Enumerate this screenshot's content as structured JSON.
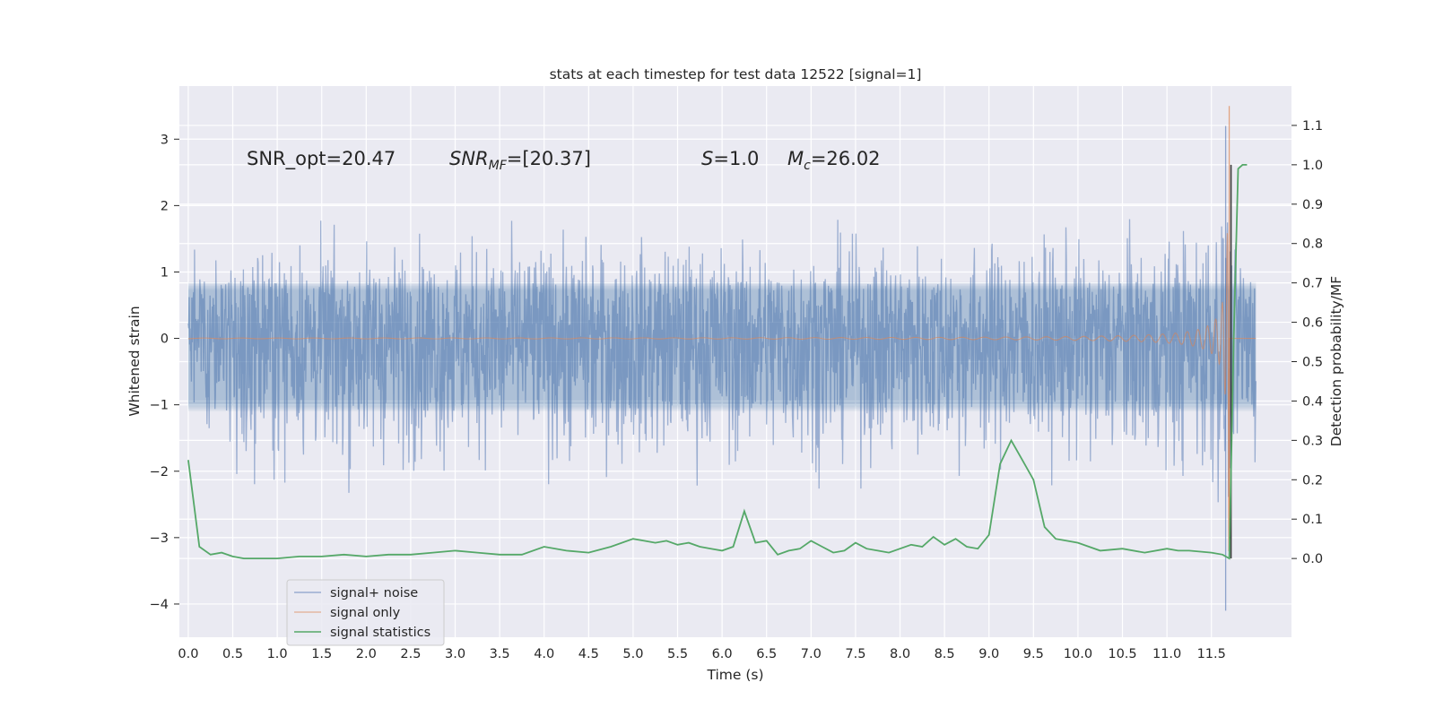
{
  "chart_data": {
    "type": "line",
    "title": "stats at each timestep for test data 12522 [signal=1]",
    "xlabel": "Time (s)",
    "ylabel": "Whitened strain",
    "ylabel_right": "Detection probability/MF",
    "xlim": [
      -0.1,
      12.4
    ],
    "ylim": [
      -4.5,
      3.8
    ],
    "ylim_right": [
      -0.2,
      1.2
    ],
    "x_ticks": [
      0.0,
      0.5,
      1.0,
      1.5,
      2.0,
      2.5,
      3.0,
      3.5,
      4.0,
      4.5,
      5.0,
      5.5,
      6.0,
      6.5,
      7.0,
      7.5,
      8.0,
      8.5,
      9.0,
      9.5,
      10.0,
      10.5,
      11.0,
      11.5
    ],
    "x_tick_labels": [
      "0.0",
      "0.5",
      "1.0",
      "1.5",
      "2.0",
      "2.5",
      "3.0",
      "3.5",
      "4.0",
      "4.5",
      "5.0",
      "5.5",
      "6.0",
      "6.5",
      "7.0",
      "7.5",
      "8.0",
      "8.5",
      "9.0",
      "9.5",
      "10.0",
      "10.5",
      "11.0",
      "11.5"
    ],
    "y_ticks": [
      3,
      2,
      1,
      0,
      -1,
      -2,
      -3,
      -4
    ],
    "y_tick_labels": [
      "3",
      "2",
      "1",
      "0",
      "−1",
      "−2",
      "−3",
      "−4"
    ],
    "y_ticks_right": [
      1.1,
      1.0,
      0.9,
      0.8,
      0.7,
      0.6,
      0.5,
      0.4,
      0.3,
      0.2,
      0.1,
      0.0
    ],
    "y_tick_labels_right": [
      "1.1",
      "1.0",
      "0.9",
      "0.8",
      "0.7",
      "0.6",
      "0.5",
      "0.4",
      "0.3",
      "0.2",
      "0.1",
      "0.0"
    ],
    "grid": true,
    "legend_placement": "lower-left",
    "annotations": {
      "snr_opt": "SNR_opt=20.47",
      "snr_mf_main": "SNR",
      "snr_mf_sub": "MF",
      "snr_mf_val": "=[20.37]",
      "s_main": "S",
      "s_val": "=1.0",
      "mc_main": "M",
      "mc_sub": "c",
      "mc_val": "=26.02"
    },
    "series": [
      {
        "name": "signal+ noise",
        "color": "#4c72b0",
        "axis": "left",
        "x_range": [
          0.0,
          12.0
        ],
        "amplitude_envelope": [
          [
            0.0,
            0.85,
            -1.2
          ],
          [
            0.5,
            1.0,
            -1.3
          ],
          [
            6.0,
            1.0,
            -1.3
          ],
          [
            10.0,
            1.0,
            -1.3
          ],
          [
            11.0,
            1.05,
            -1.35
          ],
          [
            11.5,
            1.3,
            -1.5
          ],
          [
            12.0,
            0.9,
            -1.3
          ]
        ],
        "peak_max": 3.2,
        "peak_min": -4.1
      },
      {
        "name": "signal only",
        "color": "#dd8452",
        "axis": "left",
        "x_range": [
          0.0,
          12.0
        ],
        "chirp_end": 11.7,
        "peak_max": 3.5,
        "peak_min": -3.2
      },
      {
        "name": "signal statistics",
        "color": "#55a868",
        "axis": "right",
        "x": [
          0.0,
          0.125,
          0.25,
          0.375,
          0.5,
          0.625,
          0.75,
          0.875,
          1.0,
          1.25,
          1.5,
          1.75,
          2.0,
          2.25,
          2.5,
          2.75,
          3.0,
          3.25,
          3.5,
          3.75,
          4.0,
          4.25,
          4.5,
          4.75,
          5.0,
          5.125,
          5.25,
          5.375,
          5.5,
          5.625,
          5.75,
          5.875,
          6.0,
          6.125,
          6.25,
          6.375,
          6.5,
          6.625,
          6.75,
          6.875,
          7.0,
          7.125,
          7.25,
          7.375,
          7.5,
          7.625,
          7.75,
          7.875,
          8.0,
          8.125,
          8.25,
          8.375,
          8.5,
          8.625,
          8.75,
          8.875,
          9.0,
          9.125,
          9.25,
          9.375,
          9.5,
          9.625,
          9.75,
          9.875,
          10.0,
          10.25,
          10.5,
          10.75,
          11.0,
          11.125,
          11.25,
          11.5,
          11.625,
          11.7,
          11.75,
          11.8,
          11.85,
          11.9
        ],
        "values": [
          0.25,
          0.03,
          0.01,
          0.015,
          0.005,
          0.0,
          0.0,
          0.0,
          0.0,
          0.005,
          0.005,
          0.01,
          0.005,
          0.01,
          0.01,
          0.015,
          0.02,
          0.015,
          0.01,
          0.01,
          0.03,
          0.02,
          0.015,
          0.03,
          0.05,
          0.045,
          0.04,
          0.045,
          0.035,
          0.04,
          0.03,
          0.025,
          0.02,
          0.03,
          0.12,
          0.04,
          0.045,
          0.01,
          0.02,
          0.025,
          0.045,
          0.03,
          0.015,
          0.02,
          0.04,
          0.025,
          0.02,
          0.015,
          0.025,
          0.035,
          0.03,
          0.055,
          0.035,
          0.05,
          0.03,
          0.025,
          0.06,
          0.24,
          0.3,
          0.25,
          0.2,
          0.08,
          0.05,
          0.045,
          0.04,
          0.02,
          0.025,
          0.015,
          0.025,
          0.02,
          0.02,
          0.015,
          0.01,
          0.0,
          0.55,
          0.99,
          1.0,
          1.0
        ]
      }
    ],
    "marker_line": {
      "x": 11.72,
      "color": "#3a3a3a"
    }
  }
}
